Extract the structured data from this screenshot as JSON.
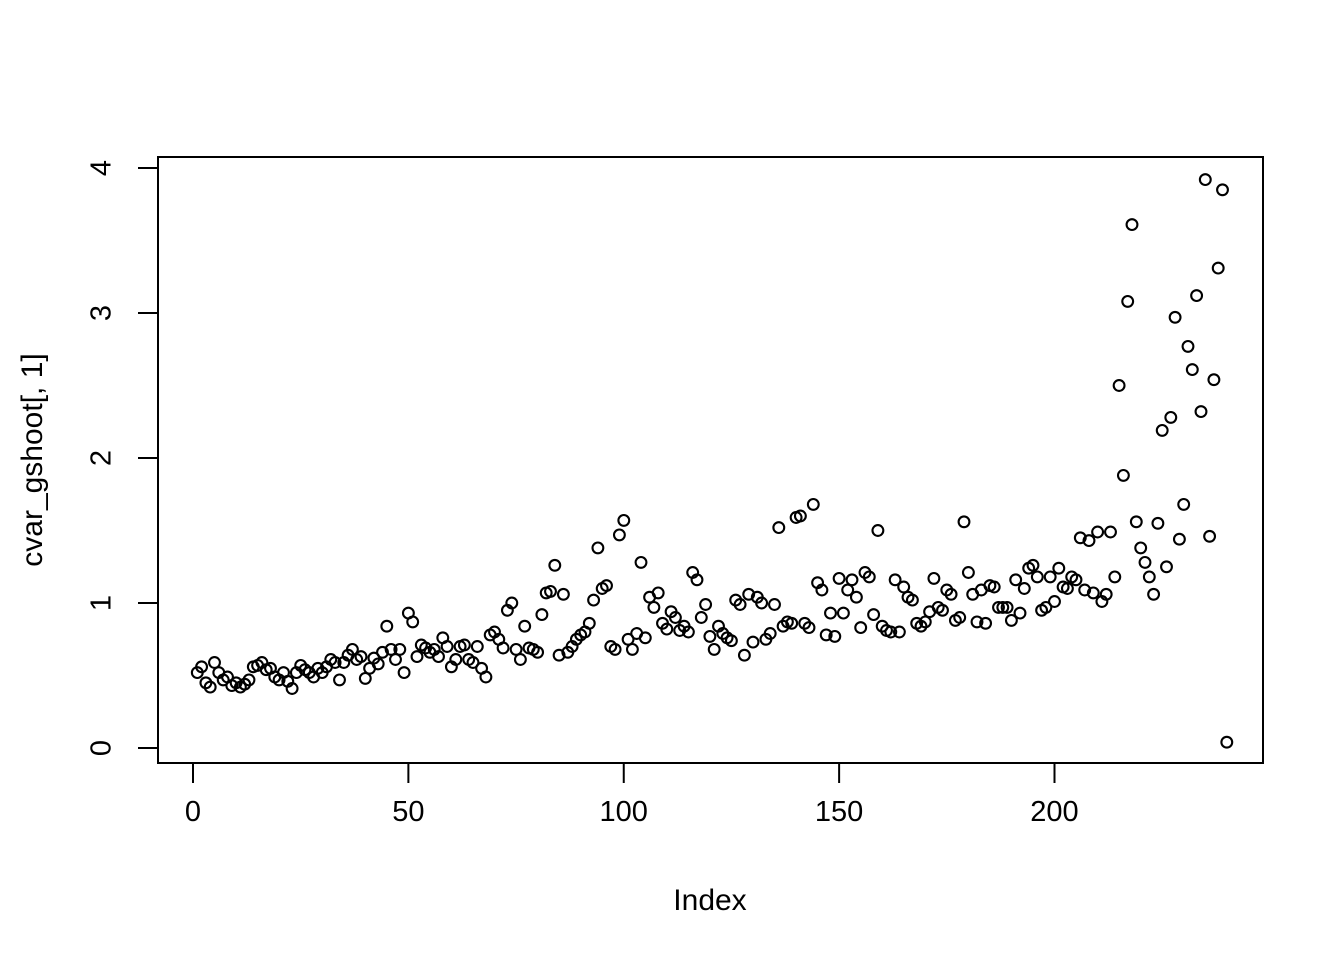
{
  "chart_data": {
    "type": "scatter",
    "title": "",
    "xlabel": "Index",
    "ylabel": "cvar_gshoot[, 1]",
    "x_is_index": true,
    "x_ticks": [
      0,
      50,
      100,
      150,
      200
    ],
    "y_ticks": [
      0,
      1,
      2,
      3,
      4
    ],
    "xlim": [
      0,
      245
    ],
    "ylim": [
      0,
      4
    ],
    "grid": false,
    "legend": "none",
    "marker": "open-circle",
    "marker_color": "#000000",
    "n_points": 240,
    "values": [
      0.52,
      0.56,
      0.45,
      0.42,
      0.59,
      0.52,
      0.47,
      0.49,
      0.43,
      0.45,
      0.42,
      0.44,
      0.47,
      0.56,
      0.57,
      0.59,
      0.54,
      0.55,
      0.49,
      0.47,
      0.52,
      0.46,
      0.41,
      0.52,
      0.57,
      0.54,
      0.52,
      0.49,
      0.55,
      0.52,
      0.56,
      0.61,
      0.59,
      0.47,
      0.59,
      0.64,
      0.68,
      0.61,
      0.63,
      0.48,
      0.55,
      0.62,
      0.58,
      0.66,
      0.84,
      0.68,
      0.61,
      0.68,
      0.52,
      0.93,
      0.87,
      0.63,
      0.71,
      0.69,
      0.66,
      0.68,
      0.63,
      0.76,
      0.7,
      0.56,
      0.61,
      0.7,
      0.71,
      0.61,
      0.59,
      0.7,
      0.55,
      0.49,
      0.78,
      0.8,
      0.75,
      0.69,
      0.95,
      1.0,
      0.68,
      0.61,
      0.84,
      0.69,
      0.68,
      0.66,
      0.92,
      1.07,
      1.08,
      1.26,
      0.64,
      1.06,
      0.66,
      0.7,
      0.75,
      0.78,
      0.8,
      0.86,
      1.02,
      1.38,
      1.1,
      1.12,
      0.7,
      0.68,
      1.47,
      1.57,
      0.75,
      0.68,
      0.79,
      1.28,
      0.76,
      1.04,
      0.97,
      1.07,
      0.86,
      0.82,
      0.94,
      0.9,
      0.81,
      0.84,
      0.8,
      1.21,
      1.16,
      0.9,
      0.99,
      0.77,
      0.68,
      0.84,
      0.79,
      0.76,
      0.74,
      1.02,
      0.99,
      0.64,
      1.06,
      0.73,
      1.04,
      1.0,
      0.75,
      0.79,
      0.99,
      1.52,
      0.84,
      0.87,
      0.86,
      1.59,
      1.6,
      0.86,
      0.83,
      1.68,
      1.14,
      1.09,
      0.78,
      0.93,
      0.77,
      1.17,
      0.93,
      1.09,
      1.16,
      1.04,
      0.83,
      1.21,
      1.18,
      0.92,
      1.5,
      0.84,
      0.81,
      0.8,
      1.16,
      0.8,
      1.11,
      1.04,
      1.02,
      0.86,
      0.84,
      0.87,
      0.94,
      1.17,
      0.97,
      0.95,
      1.09,
      1.06,
      0.88,
      0.9,
      1.56,
      1.21,
      1.06,
      0.87,
      1.09,
      0.86,
      1.12,
      1.11,
      0.97,
      0.97,
      0.97,
      0.88,
      1.16,
      0.93,
      1.1,
      1.24,
      1.26,
      1.18,
      0.95,
      0.97,
      1.18,
      1.01,
      1.24,
      1.11,
      1.1,
      1.18,
      1.16,
      1.45,
      1.09,
      1.43,
      1.07,
      1.49,
      1.01,
      1.06,
      1.49,
      1.18,
      2.5,
      1.88,
      3.08,
      3.61,
      1.56,
      1.38,
      1.28,
      1.18,
      1.06,
      1.55,
      2.19,
      1.25,
      2.28,
      2.97,
      1.44,
      1.68,
      2.77,
      2.61,
      3.12,
      2.32,
      3.92,
      1.46,
      2.54,
      3.31,
      3.85,
      0.04
    ]
  }
}
